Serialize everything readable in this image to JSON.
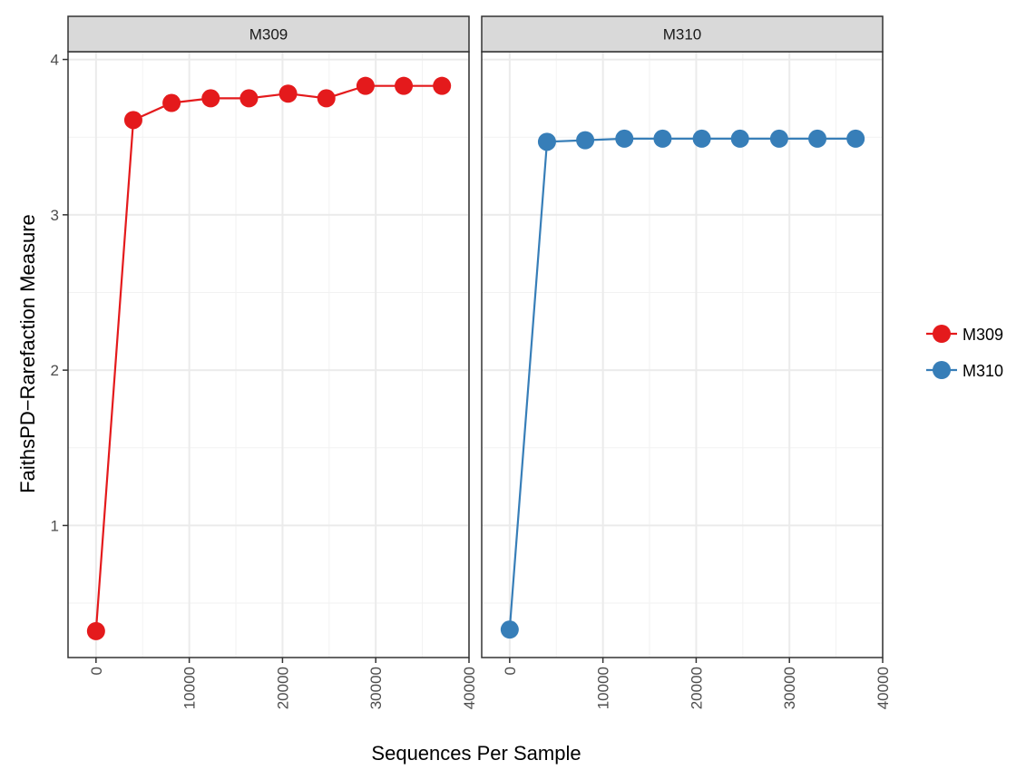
{
  "chart_data": {
    "type": "line",
    "xlabel": "Sequences Per Sample",
    "ylabel": "FaithsPD−Rarefaction Measure",
    "xlim": [
      -3000,
      40000
    ],
    "ylim": [
      0.15,
      4.05
    ],
    "x_ticks": [
      0,
      10000,
      20000,
      30000,
      40000
    ],
    "y_ticks": [
      1,
      2,
      3,
      4
    ],
    "grid": true,
    "legend_position": "right",
    "facets": [
      {
        "label": "M309",
        "series": "M309",
        "color": "#E41A1C",
        "x": [
          1,
          4000,
          8100,
          12300,
          16400,
          20600,
          24700,
          28900,
          33000,
          37100
        ],
        "y": [
          0.32,
          3.61,
          3.72,
          3.75,
          3.75,
          3.78,
          3.75,
          3.83,
          3.83,
          3.83
        ]
      },
      {
        "label": "M310",
        "series": "M310",
        "color": "#377EB8",
        "x": [
          1,
          4000,
          8100,
          12300,
          16400,
          20600,
          24700,
          28900,
          33000,
          37100
        ],
        "y": [
          0.33,
          3.47,
          3.48,
          3.49,
          3.49,
          3.49,
          3.49,
          3.49,
          3.49,
          3.49
        ]
      }
    ],
    "legend": [
      {
        "name": "M309",
        "color": "#E41A1C"
      },
      {
        "name": "M310",
        "color": "#377EB8"
      }
    ]
  }
}
